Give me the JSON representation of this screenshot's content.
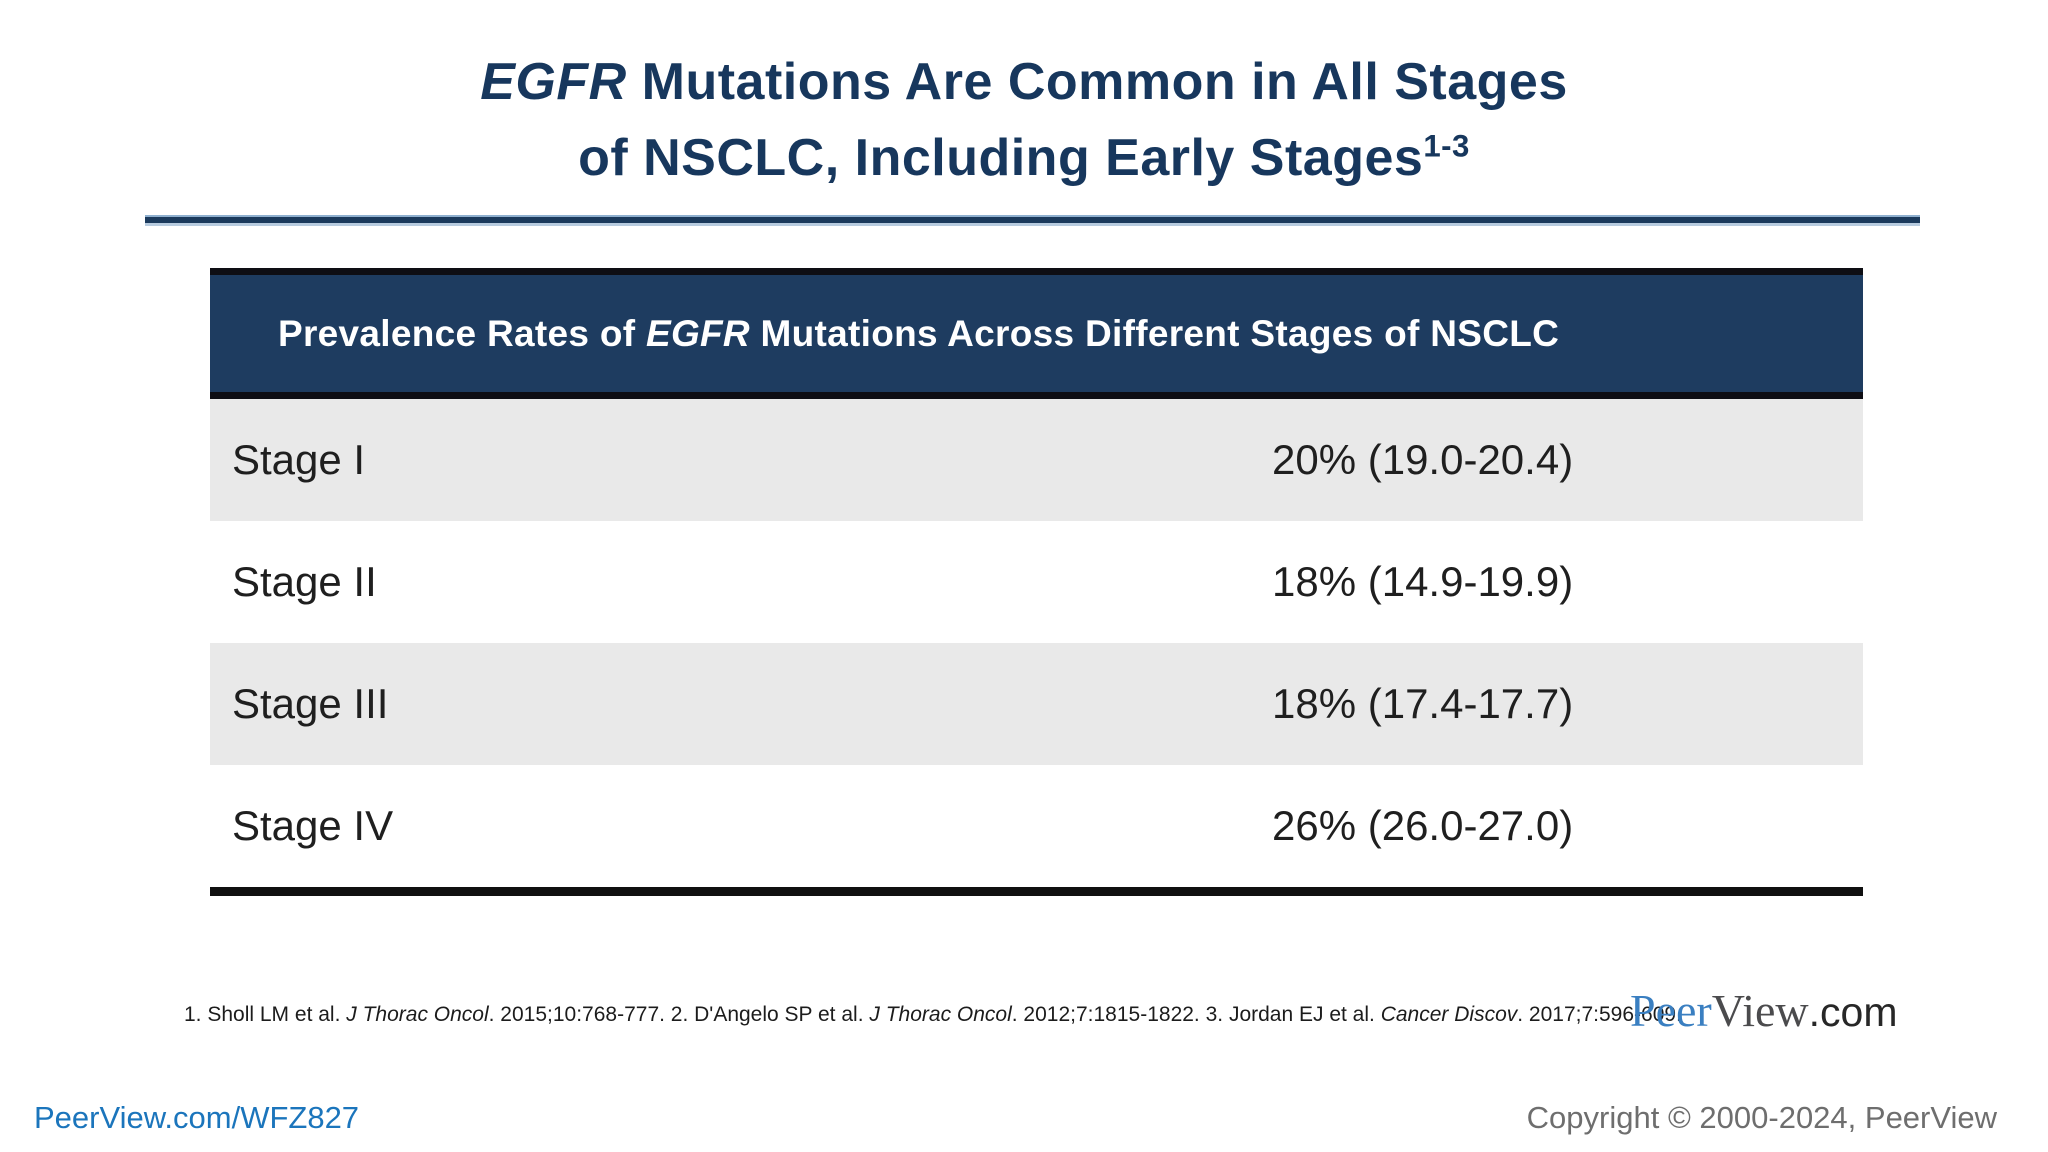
{
  "title": {
    "line1_italic": "EGFR",
    "line1_rest": " Mutations Are Common in All Stages",
    "line2": "of NSCLC, Including Early Stages",
    "line2_superscript": "1-3",
    "color": "#17375d"
  },
  "table": {
    "header": {
      "prefix": "Prevalence Rates of ",
      "italic": "EGFR",
      "suffix": " Mutations Across Different Stages of NSCLC",
      "bg_color": "#1e3c60",
      "text_color": "#ffffff"
    },
    "rows": [
      {
        "stage": "Stage I",
        "value": "20% (19.0-20.4)"
      },
      {
        "stage": "Stage II",
        "value": "18% (14.9-19.9)"
      },
      {
        "stage": "Stage III",
        "value": "18% (17.4-17.7)"
      },
      {
        "stage": "Stage IV",
        "value": "26% (26.0-27.0)"
      }
    ],
    "alt_row_color": "#e9e9e9"
  },
  "chart_data": {
    "type": "table",
    "title": "Prevalence Rates of EGFR Mutations Across Different Stages of NSCLC",
    "categories": [
      "Stage I",
      "Stage II",
      "Stage III",
      "Stage IV"
    ],
    "values_percent": [
      20,
      18,
      18,
      26
    ],
    "ranges": [
      "19.0-20.4",
      "14.9-19.9",
      "17.4-17.7",
      "26.0-27.0"
    ]
  },
  "footnote": {
    "parts": [
      "1. Sholl LM et al. ",
      "J Thorac Oncol",
      ". 2015;10:768-777. 2. D'Angelo SP et al. ",
      "J Thorac Oncol",
      ". 2012;7:1815-1822. 3. Jordan EJ et al. ",
      "Cancer Discov",
      ". 2017;7:596-609."
    ]
  },
  "logo": {
    "peer": "Peer",
    "view": "View",
    "com": ".com",
    "peer_color": "#3a7fc1",
    "view_color": "#4b4b4d",
    "com_color": "#272727"
  },
  "footer": {
    "link": "PeerView.com/WFZ827",
    "link_color": "#1b75bc",
    "copyright": "Copyright © 2000-2024, PeerView"
  }
}
